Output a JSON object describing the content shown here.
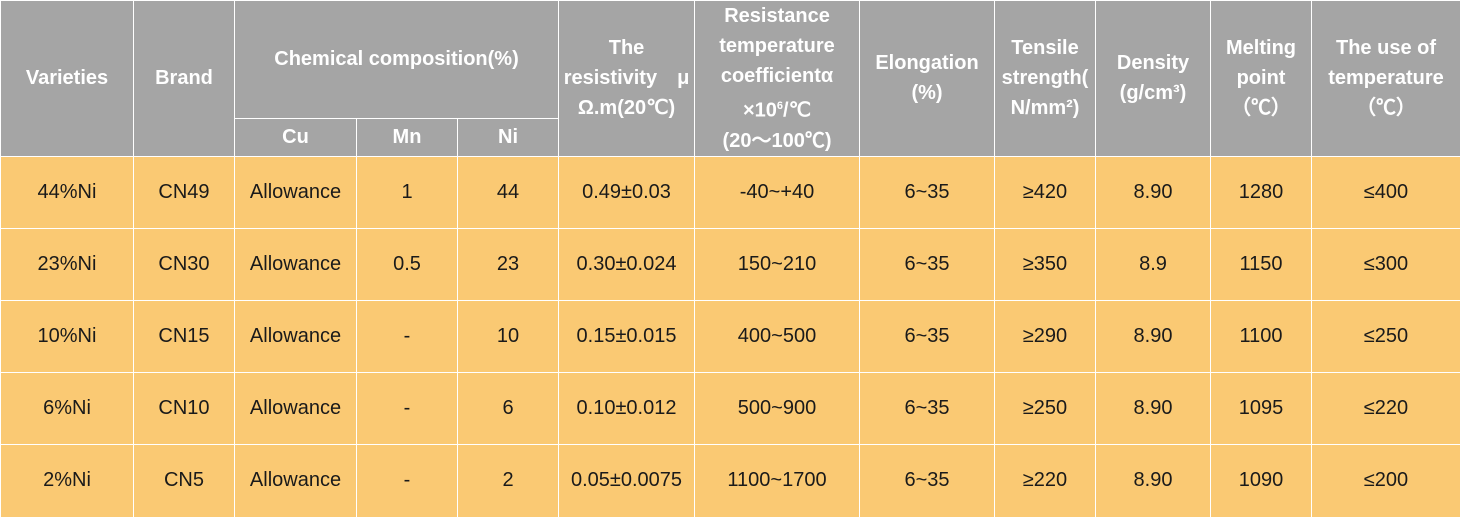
{
  "header": {
    "varieties": "Varieties",
    "brand": "Brand",
    "chemical": "Chemical composition(%)",
    "cu": "Cu",
    "mn": "Mn",
    "ni": "Ni",
    "resistivity": [
      "The",
      "resistivity　μ",
      "Ω.m(20℃)"
    ],
    "coefficient": {
      "line1": "Resistance",
      "line2": "temperature",
      "line3": "coefficientα",
      "line4_pre": "×10",
      "line4_sup": "6",
      "line4_post": "/℃",
      "line5": "(20～100℃)"
    },
    "elongation": [
      "Elongation",
      "(%)"
    ],
    "tensile": [
      "Tensile",
      "strength(",
      "N/mm²)"
    ],
    "density": [
      "Density",
      "(g/cm³)"
    ],
    "melting": [
      "Melting",
      "point",
      "（℃）"
    ],
    "use_temp": [
      "The use of",
      "temperature",
      "（℃）"
    ]
  },
  "rows": [
    {
      "variety": "44%Ni",
      "brand": "CN49",
      "cu": "Allowance",
      "mn": "1",
      "ni": "44",
      "resistivity": "0.49±0.03",
      "coefficient": "-40~+40",
      "elongation": "6~35",
      "tensile": "≥420",
      "density": "8.90",
      "melting": "1280",
      "use_temp": "≤400"
    },
    {
      "variety": "23%Ni",
      "brand": "CN30",
      "cu": "Allowance",
      "mn": "0.5",
      "ni": "23",
      "resistivity": "0.30±0.024",
      "coefficient": "150~210",
      "elongation": "6~35",
      "tensile": "≥350",
      "density": "8.9",
      "melting": "1150",
      "use_temp": "≤300"
    },
    {
      "variety": "10%Ni",
      "brand": "CN15",
      "cu": "Allowance",
      "mn": "-",
      "ni": "10",
      "resistivity": "0.15±0.015",
      "coefficient": "400~500",
      "elongation": "6~35",
      "tensile": "≥290",
      "density": "8.90",
      "melting": "1100",
      "use_temp": "≤250"
    },
    {
      "variety": "6%Ni",
      "brand": "CN10",
      "cu": "Allowance",
      "mn": "-",
      "ni": "6",
      "resistivity": "0.10±0.012",
      "coefficient": "500~900",
      "elongation": "6~35",
      "tensile": "≥250",
      "density": "8.90",
      "melting": "1095",
      "use_temp": "≤220"
    },
    {
      "variety": "2%Ni",
      "brand": "CN5",
      "cu": "Allowance",
      "mn": "-",
      "ni": "2",
      "resistivity": "0.05±0.0075",
      "coefficient": "1100~1700",
      "elongation": "6~35",
      "tensile": "≥220",
      "density": "8.90",
      "melting": "1090",
      "use_temp": "≤200"
    }
  ],
  "colors": {
    "header_bg": "#a5a5a5",
    "header_text": "#ffffff",
    "body_bg": "#fac973",
    "body_text": "#1a1a1a",
    "border": "#ffffff"
  }
}
